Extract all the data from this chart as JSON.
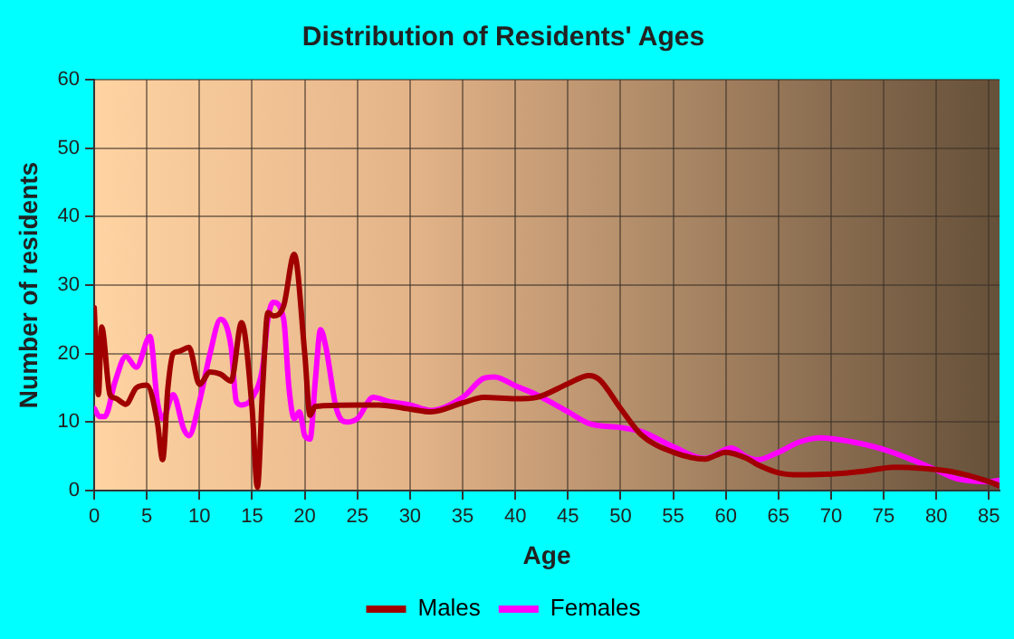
{
  "chart_data": {
    "type": "line",
    "title": "Distribution of Residents' Ages",
    "xlabel": "Age",
    "ylabel": "Number of residents",
    "xlim": [
      0,
      86
    ],
    "xticks": [
      0,
      5,
      10,
      15,
      20,
      25,
      30,
      35,
      40,
      45,
      50,
      55,
      60,
      65,
      70,
      75,
      80,
      85
    ],
    "ylim": [
      0,
      60
    ],
    "yticks": [
      0,
      10,
      20,
      30,
      40,
      50,
      60
    ],
    "grid": true,
    "legend": "bottom",
    "marker": "none",
    "line_style": "solid",
    "series": [
      {
        "name": "Males",
        "color": "#a00000",
        "x": [
          0,
          0.4,
          0.7,
          1.5,
          2,
          3,
          4,
          5,
          6,
          6.5,
          7,
          7.5,
          8,
          9,
          10,
          11,
          12,
          13,
          14,
          15,
          15.5,
          16,
          16.5,
          17,
          18,
          19,
          20,
          20.5,
          21,
          25,
          27,
          30,
          32,
          35,
          37,
          40,
          42,
          45,
          47,
          48,
          50,
          52,
          55,
          58,
          60,
          62,
          63,
          65,
          67,
          70,
          73,
          76,
          79,
          82,
          85,
          86
        ],
        "values": [
          26.7,
          14,
          23.9,
          14,
          13.5,
          12.6,
          15,
          15.4,
          10,
          4.5,
          15,
          20,
          20.3,
          20.9,
          15.5,
          17.3,
          17,
          16,
          24.5,
          12,
          0.5,
          15,
          26,
          25.5,
          27,
          34.5,
          20,
          11,
          12.3,
          12.5,
          12.5,
          11.9,
          11.5,
          12.8,
          13.6,
          13.4,
          13.6,
          15.6,
          16.8,
          16.2,
          12,
          8.1,
          5.6,
          4.6,
          5.6,
          4.7,
          3.8,
          2.6,
          2.3,
          2.4,
          2.8,
          3.4,
          3.2,
          2.6,
          1.3,
          0.7
        ]
      },
      {
        "name": "Females",
        "color": "#ff00ff",
        "x": [
          0,
          0.5,
          1,
          2,
          3,
          4,
          5.3,
          6,
          6.5,
          7.5,
          8.5,
          9,
          10,
          11,
          12,
          13,
          13.5,
          14,
          15,
          16,
          16.5,
          17,
          18,
          18.5,
          19,
          19.5,
          20,
          20.5,
          21,
          21.5,
          22,
          23,
          24,
          25,
          26.5,
          28,
          30,
          32,
          35,
          37,
          38,
          40,
          42,
          45,
          47,
          50,
          52,
          55,
          58,
          60.5,
          62,
          63,
          65,
          67,
          69,
          72,
          75,
          78,
          80,
          82,
          85,
          86
        ],
        "values": [
          12,
          10.8,
          10.8,
          16,
          19.6,
          18,
          22.5,
          13,
          10.5,
          14,
          9,
          8,
          13,
          20,
          25,
          21,
          13,
          12.5,
          13.5,
          18,
          25,
          27.5,
          25,
          15,
          10.5,
          11.5,
          8,
          7.5,
          16,
          23.5,
          21,
          12,
          10,
          10.5,
          13.6,
          13,
          12.5,
          11.7,
          13.6,
          16.4,
          16.6,
          15.3,
          14,
          11.5,
          9.8,
          9.2,
          8.6,
          6.4,
          4.7,
          6.2,
          4.9,
          4.5,
          5.6,
          7.1,
          7.7,
          7.1,
          6,
          4.3,
          3,
          1.7,
          1.3,
          1.5
        ]
      }
    ]
  }
}
